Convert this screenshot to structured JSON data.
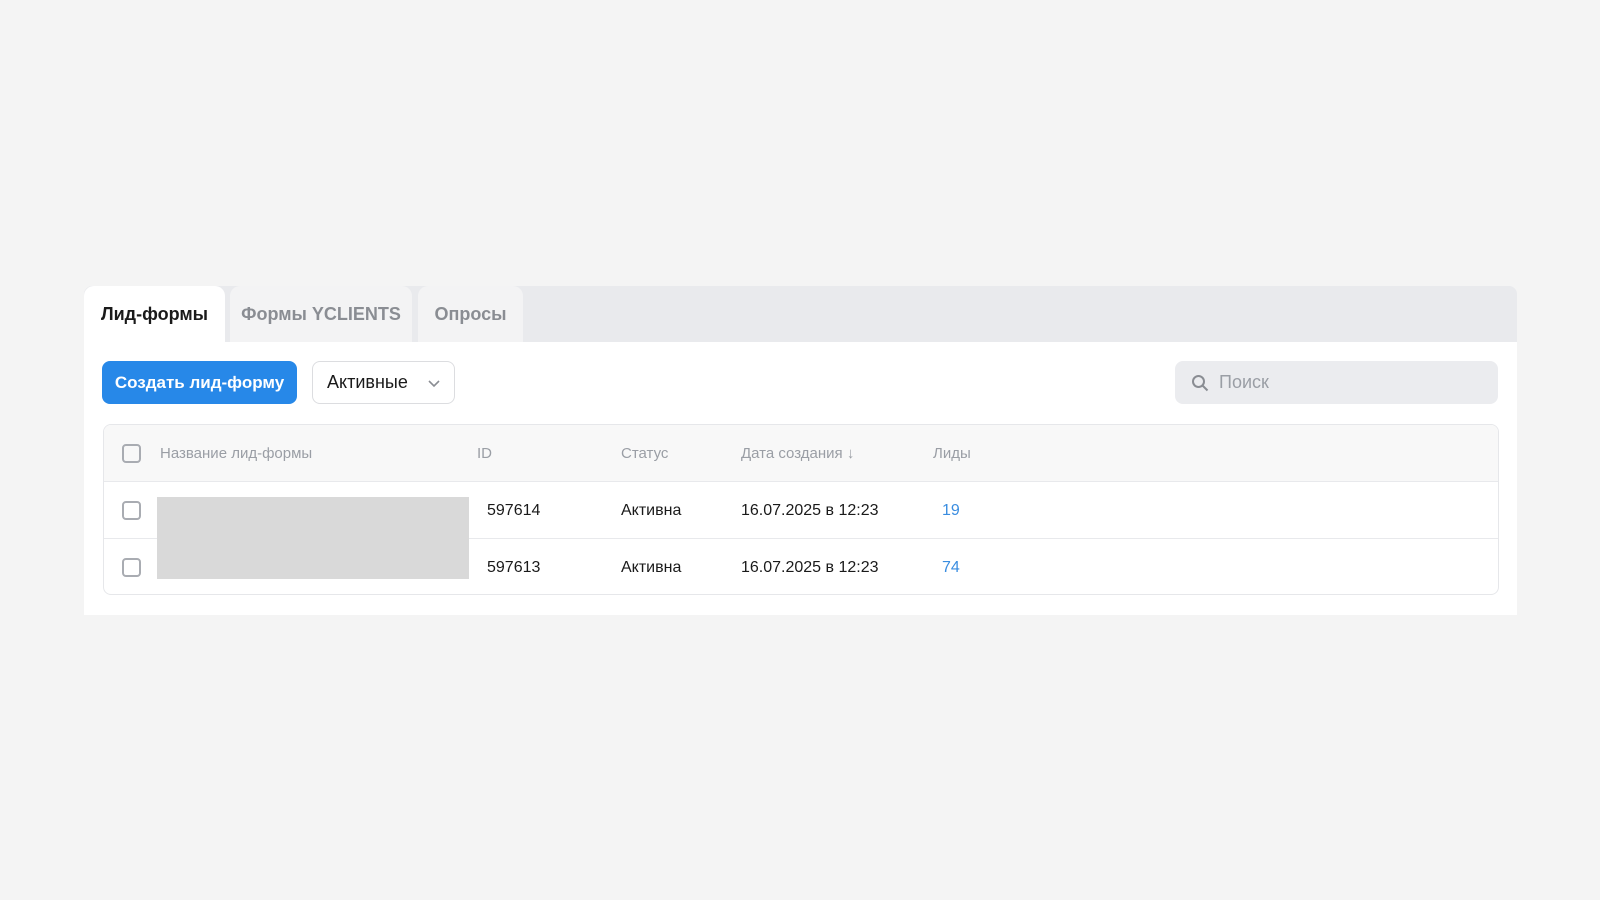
{
  "tabs": [
    {
      "label": "Лид-формы",
      "active": true
    },
    {
      "label": "Формы YCLIENTS",
      "active": false
    },
    {
      "label": "Опросы",
      "active": false
    }
  ],
  "toolbar": {
    "create_label": "Создать лид-форму",
    "filter_value": "Активные",
    "search_placeholder": "Поиск"
  },
  "table": {
    "columns": {
      "name": "Название лид-формы",
      "id": "ID",
      "status": "Статус",
      "date": "Дата создания ↓",
      "leads": "Лиды"
    },
    "rows": [
      {
        "id": "597614",
        "status": "Активна",
        "date": "16.07.2025 в 12:23",
        "leads": "19"
      },
      {
        "id": "597613",
        "status": "Активна",
        "date": "16.07.2025 в 12:23",
        "leads": "74"
      }
    ]
  },
  "colors": {
    "accent": "#2788e8",
    "link": "#3a8de0"
  }
}
